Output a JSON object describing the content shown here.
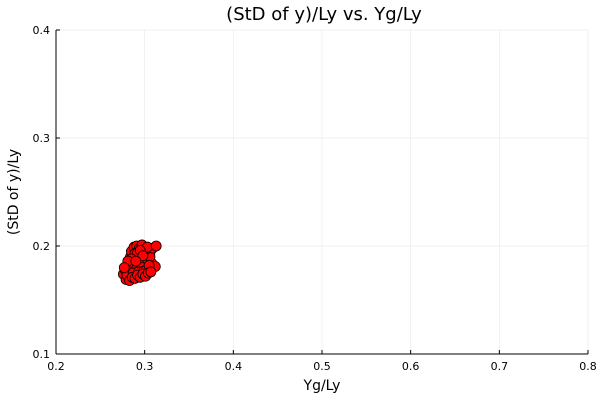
{
  "chart_data": {
    "type": "scatter",
    "title": "(StD of y)/Ly vs. Yg/Ly",
    "xlabel": "Yg/Ly",
    "ylabel": "(StD of y)/Ly",
    "xlim": [
      0.2,
      0.8
    ],
    "ylim": [
      0.1,
      0.4
    ],
    "xticks": [
      "0.2",
      "0.3",
      "0.4",
      "0.5",
      "0.6",
      "0.7",
      "0.8"
    ],
    "yticks": [
      "0.1",
      "0.2",
      "0.3",
      "0.4"
    ],
    "grid": true,
    "legend": "none",
    "marker_color": "#ff0000",
    "marker_edge_color": "#000000",
    "series": [
      {
        "x": [
          0.276,
          0.279,
          0.281,
          0.283,
          0.284,
          0.286,
          0.287,
          0.288,
          0.289,
          0.29,
          0.291,
          0.292,
          0.293,
          0.294,
          0.295,
          0.296,
          0.297,
          0.298,
          0.299,
          0.3,
          0.302,
          0.304,
          0.306,
          0.308,
          0.312,
          0.278,
          0.282,
          0.285,
          0.288,
          0.291,
          0.294,
          0.297,
          0.3,
          0.303,
          0.306,
          0.309,
          0.28,
          0.284,
          0.287,
          0.29,
          0.293,
          0.296,
          0.299,
          0.302,
          0.305,
          0.283,
          0.286,
          0.289,
          0.292,
          0.295,
          0.298,
          0.301,
          0.304,
          0.307,
          0.285,
          0.288,
          0.291,
          0.294,
          0.297,
          0.3,
          0.303,
          0.289,
          0.292,
          0.295,
          0.298,
          0.313,
          0.285,
          0.281,
          0.277,
          0.29
        ],
        "y": [
          0.174,
          0.169,
          0.172,
          0.176,
          0.18,
          0.178,
          0.183,
          0.186,
          0.181,
          0.188,
          0.184,
          0.19,
          0.187,
          0.182,
          0.192,
          0.185,
          0.189,
          0.195,
          0.183,
          0.187,
          0.191,
          0.186,
          0.194,
          0.184,
          0.181,
          0.178,
          0.182,
          0.185,
          0.191,
          0.179,
          0.196,
          0.18,
          0.193,
          0.188,
          0.19,
          0.198,
          0.173,
          0.19,
          0.175,
          0.197,
          0.176,
          0.199,
          0.177,
          0.178,
          0.182,
          0.168,
          0.171,
          0.17,
          0.173,
          0.171,
          0.174,
          0.172,
          0.175,
          0.176,
          0.195,
          0.199,
          0.2,
          0.198,
          0.201,
          0.196,
          0.199,
          0.193,
          0.194,
          0.196,
          0.191,
          0.2,
          0.188,
          0.186,
          0.18,
          0.186
        ]
      }
    ]
  }
}
